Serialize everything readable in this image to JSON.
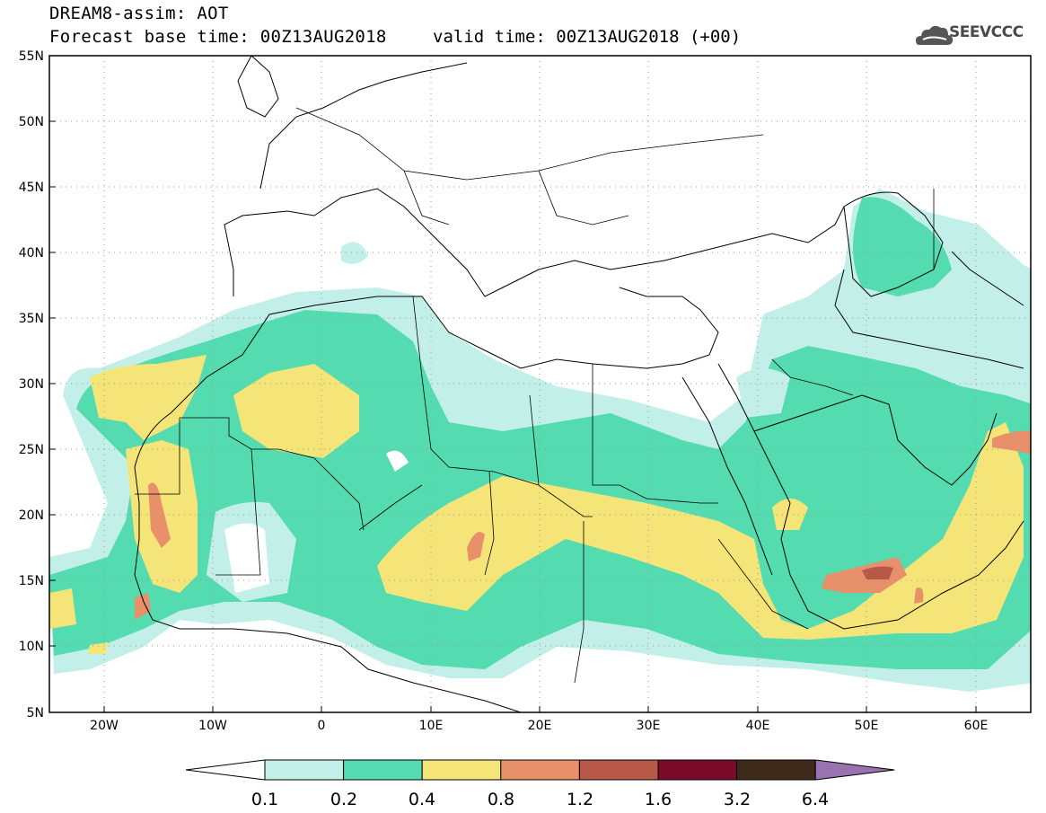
{
  "header": {
    "product_line": "DREAM8-assim: AOT",
    "base_time_line": "Forecast base time: 00Z13AUG2018",
    "valid_time_line": "valid time: 00Z13AUG2018 (+00)"
  },
  "logo": {
    "text": "SEEVCCC",
    "icon": "cloud-icon"
  },
  "map": {
    "lon_range": [
      -25,
      65
    ],
    "lat_range": [
      5,
      55
    ],
    "lat_ticks": [
      "55N",
      "50N",
      "45N",
      "40N",
      "35N",
      "30N",
      "25N",
      "20N",
      "15N",
      "10N",
      "5N"
    ],
    "lon_ticks": [
      "20W",
      "10W",
      "0",
      "10E",
      "20E",
      "30E",
      "40E",
      "50E",
      "60E"
    ],
    "grid": true
  },
  "legend": {
    "labels": [
      "0.1",
      "0.2",
      "0.4",
      "0.8",
      "1.2",
      "1.6",
      "3.2",
      "6.4"
    ],
    "colors": [
      "#ffffff",
      "#c2f0e8",
      "#55dbb0",
      "#f5e578",
      "#e8906a",
      "#b85848",
      "#7a0a28",
      "#3e2a1a",
      "#9a72b0"
    ]
  }
}
